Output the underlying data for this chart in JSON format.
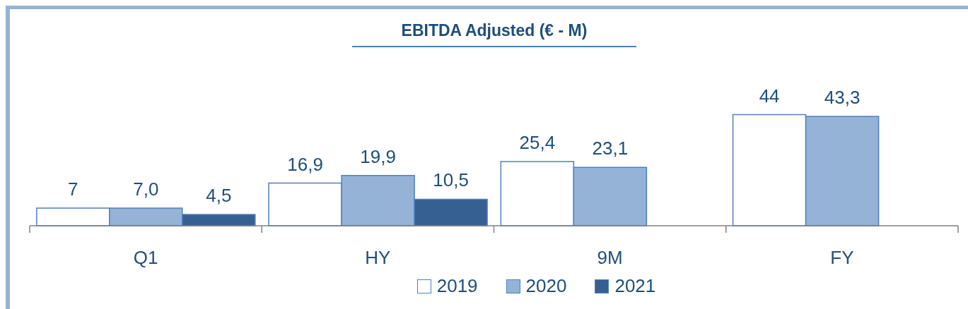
{
  "chart_data": {
    "type": "bar",
    "title": "EBITDA Adjusted (€ - M)",
    "categories": [
      "Q1",
      "HY",
      "9M",
      "FY"
    ],
    "legend": "bottom",
    "series": [
      {
        "name": "2019",
        "color": "#ffffff",
        "values": [
          7,
          16.9,
          25.4,
          44
        ],
        "value_labels": [
          "7",
          "16,9",
          "25,4",
          "44"
        ]
      },
      {
        "name": "2020",
        "color": "#95b3d7",
        "values": [
          7.0,
          19.9,
          23.1,
          43.3
        ],
        "value_labels": [
          "7,0",
          "19,9",
          "23,1",
          "43,3"
        ]
      },
      {
        "name": "2021",
        "color": "#376092",
        "values": [
          4.5,
          10.5,
          null,
          null
        ],
        "value_labels": [
          "4,5",
          "10,5",
          null,
          null
        ]
      }
    ]
  }
}
